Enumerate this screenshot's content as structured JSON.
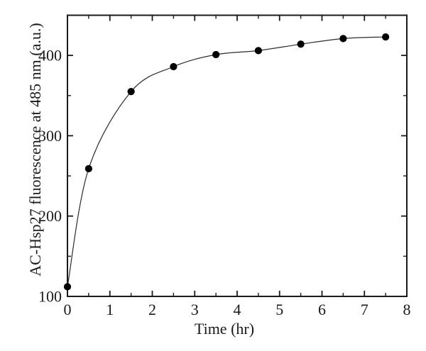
{
  "figure": {
    "background": "#ffffff",
    "axis_color": "#1a1a1a",
    "curve_color": "#2b2b2b",
    "marker_color": "#000000"
  },
  "chart_data": {
    "type": "scatter",
    "title": "",
    "xlabel": "Time (hr)",
    "ylabel": "AC-Hsp27 fluorescence at 485 nm (a.u.)",
    "xlim": [
      0,
      8
    ],
    "ylim": [
      100,
      450
    ],
    "x_major_ticks": [
      0,
      1,
      2,
      3,
      4,
      5,
      6,
      7,
      8
    ],
    "x_minor_tick_step": 0.5,
    "y_major_ticks": [
      100,
      200,
      300,
      400
    ],
    "y_minor_tick_step": 50,
    "grid": false,
    "legend": "none",
    "ticks_direction": "in",
    "ticks_on_all_sides": true,
    "series": [
      {
        "name": "AC-Hsp27 fluorescence vs time",
        "marker": "filled-circle",
        "line": "smooth-fit-curve",
        "x": [
          0,
          0.5,
          1.5,
          2.5,
          3.5,
          4.5,
          5.5,
          6.5,
          7.5
        ],
        "y": [
          112,
          259,
          355,
          386,
          401,
          406,
          414,
          421,
          423
        ]
      }
    ]
  }
}
